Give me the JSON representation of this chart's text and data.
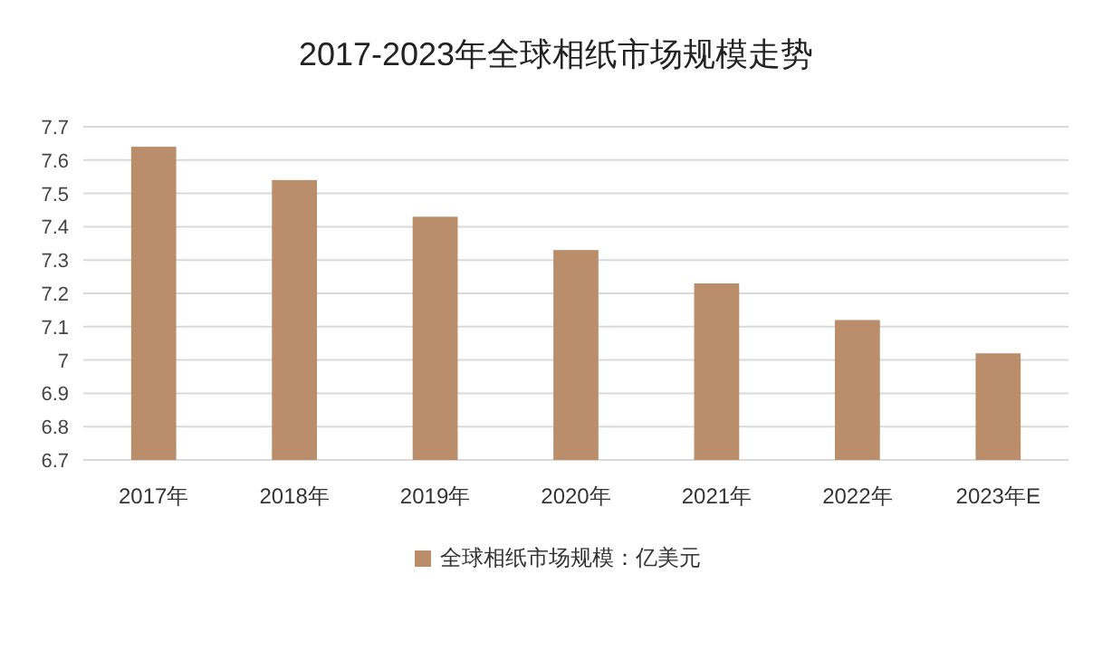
{
  "chart_data": {
    "type": "bar",
    "title": "2017-2023年全球相纸市场规模走势",
    "categories": [
      "2017年",
      "2018年",
      "2019年",
      "2020年",
      "2021年",
      "2022年",
      "2023年E"
    ],
    "series": [
      {
        "name": "全球相纸市场规模：亿美元",
        "color": "#bb8e6b",
        "values": [
          7.64,
          7.54,
          7.43,
          7.33,
          7.23,
          7.12,
          7.02
        ]
      }
    ],
    "ylim": [
      6.7,
      7.7
    ],
    "yticks": [
      6.7,
      6.8,
      6.9,
      7,
      7.1,
      7.2,
      7.3,
      7.4,
      7.5,
      7.6,
      7.7
    ],
    "grid": "y",
    "legend": "bottom"
  }
}
